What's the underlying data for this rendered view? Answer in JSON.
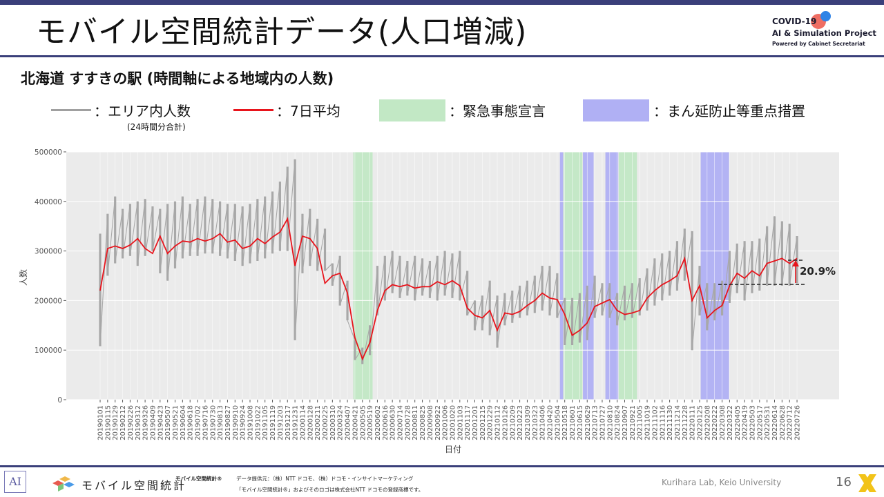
{
  "header": {
    "title": "モバイル空間統計データ(人口増減)",
    "logo_line1": "COVID-19",
    "logo_line2": "AI & Simulation Project",
    "logo_line3": "Powered by Cabinet Secretariat"
  },
  "subtitle": "北海道 すすきの駅 (時間軸による地域内の人数)",
  "legend": {
    "area_label": "：エリア内人数",
    "area_sub": "(24時間分合計)",
    "avg_label": "：7日平均",
    "emergency_label": "：緊急事態宣言",
    "priority_label": "：まん延防止等重点措置"
  },
  "annotation": "20.9%",
  "footer": {
    "brand": "モバイル空間統計",
    "brand_reg": "モバイル空間統計®",
    "source": "データ提供元：（株）NTT ドコモ、（株）ドコモ・インサイトマーケティング",
    "trademark": "「モバイル空間統計®」およびそのロゴは株式会社NTT ドコモの登録商標です。",
    "lab": "Kurihara Lab, Keio University",
    "page": "16",
    "ai_mark": "AI"
  },
  "colors": {
    "daily": "#a8a8a8",
    "average": "#e8141c",
    "emergency": "#c2e8c5",
    "priority": "#b0b0f4",
    "plot_bg": "#ebebeb"
  },
  "chart_data": {
    "type": "line",
    "xlabel": "日付",
    "ylabel": "人数",
    "ylim": [
      0,
      500000
    ],
    "yticks": [
      0,
      100000,
      200000,
      300000,
      400000,
      500000
    ],
    "x_tick_labels": [
      "20190101",
      "20190115",
      "20190129",
      "20190212",
      "20190226",
      "20190312",
      "20190326",
      "20190409",
      "20190423",
      "20190507",
      "20190521",
      "20190604",
      "20190618",
      "20190702",
      "20190716",
      "20190730",
      "20190813",
      "20190827",
      "20190910",
      "20190924",
      "20191008",
      "20191022",
      "20191105",
      "20191119",
      "20191203",
      "20191217",
      "20191231",
      "20200114",
      "20200128",
      "20200211",
      "20200225",
      "20200310",
      "20200324",
      "20200407",
      "20200421",
      "20200505",
      "20200519",
      "20200602",
      "20200616",
      "20200630",
      "20200714",
      "20200728",
      "20200811",
      "20200825",
      "20200908",
      "20200922",
      "20201006",
      "20201020",
      "20201103",
      "20201117",
      "20201201",
      "20201215",
      "20201229",
      "20210112",
      "20210126",
      "20210209",
      "20210223",
      "20210309",
      "20210323",
      "20210406",
      "20210420",
      "20210504",
      "20210518",
      "20210601",
      "20210615",
      "20210629",
      "20210713",
      "20210727",
      "20210810",
      "20210824",
      "20210907",
      "20210921",
      "20211005",
      "20211019",
      "20211102",
      "20211116",
      "20211130",
      "20211214",
      "20211228",
      "20220111",
      "20220125",
      "20220208",
      "20220222",
      "20220308",
      "20220322",
      "20220405",
      "20220419",
      "20220503",
      "20220517",
      "20220531",
      "20220614",
      "20220628",
      "20220712",
      "20220726"
    ],
    "series": [
      {
        "name": "エリア内人数",
        "style": "daily-range",
        "low": [
          108000,
          250000,
          275000,
          285000,
          290000,
          270000,
          290000,
          300000,
          255000,
          240000,
          265000,
          285000,
          290000,
          290000,
          295000,
          295000,
          290000,
          285000,
          280000,
          270000,
          275000,
          280000,
          285000,
          295000,
          300000,
          300000,
          120000,
          255000,
          270000,
          260000,
          260000,
          230000,
          190000,
          160000,
          80000,
          72000,
          90000,
          170000,
          200000,
          215000,
          205000,
          210000,
          200000,
          210000,
          205000,
          200000,
          210000,
          205000,
          200000,
          170000,
          140000,
          140000,
          130000,
          105000,
          150000,
          155000,
          165000,
          170000,
          175000,
          180000,
          170000,
          165000,
          110000,
          110000,
          115000,
          120000,
          165000,
          170000,
          165000,
          150000,
          160000,
          165000,
          170000,
          180000,
          190000,
          200000,
          210000,
          220000,
          240000,
          100000,
          170000,
          140000,
          160000,
          170000,
          195000,
          215000,
          200000,
          215000,
          220000,
          230000,
          230000,
          230000,
          230000,
          235000
        ],
        "high": [
          335000,
          375000,
          410000,
          385000,
          395000,
          400000,
          405000,
          390000,
          385000,
          395000,
          400000,
          410000,
          395000,
          405000,
          410000,
          405000,
          400000,
          395000,
          395000,
          390000,
          395000,
          405000,
          410000,
          420000,
          440000,
          470000,
          485000,
          375000,
          385000,
          365000,
          345000,
          275000,
          290000,
          240000,
          120000,
          105000,
          150000,
          270000,
          290000,
          300000,
          290000,
          280000,
          290000,
          285000,
          280000,
          290000,
          300000,
          295000,
          300000,
          260000,
          200000,
          210000,
          240000,
          210000,
          215000,
          220000,
          230000,
          240000,
          250000,
          270000,
          270000,
          255000,
          205000,
          205000,
          215000,
          230000,
          250000,
          235000,
          235000,
          215000,
          230000,
          235000,
          245000,
          265000,
          285000,
          295000,
          300000,
          320000,
          345000,
          340000,
          270000,
          235000,
          235000,
          240000,
          300000,
          315000,
          320000,
          320000,
          325000,
          350000,
          370000,
          360000,
          355000,
          330000
        ]
      },
      {
        "name": "7日平均",
        "style": "line",
        "values": [
          220000,
          305000,
          310000,
          305000,
          312000,
          325000,
          305000,
          295000,
          330000,
          295000,
          310000,
          320000,
          318000,
          325000,
          320000,
          325000,
          335000,
          318000,
          322000,
          305000,
          310000,
          325000,
          315000,
          328000,
          338000,
          365000,
          270000,
          330000,
          325000,
          305000,
          235000,
          250000,
          255000,
          215000,
          125000,
          82000,
          115000,
          180000,
          220000,
          232000,
          228000,
          232000,
          225000,
          228000,
          228000,
          238000,
          232000,
          240000,
          230000,
          185000,
          170000,
          165000,
          180000,
          140000,
          175000,
          172000,
          178000,
          190000,
          200000,
          215000,
          205000,
          202000,
          172000,
          130000,
          140000,
          155000,
          188000,
          195000,
          202000,
          180000,
          172000,
          175000,
          180000,
          205000,
          220000,
          232000,
          240000,
          250000,
          285000,
          200000,
          230000,
          165000,
          180000,
          190000,
          230000,
          255000,
          245000,
          260000,
          250000,
          275000,
          280000,
          285000,
          275000,
          285000
        ]
      }
    ],
    "shaded_periods": [
      {
        "type": "emergency",
        "from": "20200418",
        "to": "20200524"
      },
      {
        "type": "priority",
        "from": "20210509",
        "to": "20210515"
      },
      {
        "type": "emergency",
        "from": "20210516",
        "to": "20210620"
      },
      {
        "type": "priority",
        "from": "20210621",
        "to": "20210711"
      },
      {
        "type": "priority",
        "from": "20210802",
        "to": "20210826"
      },
      {
        "type": "emergency",
        "from": "20210827",
        "to": "20210930"
      },
      {
        "type": "priority",
        "from": "20220127",
        "to": "20220321"
      }
    ]
  }
}
